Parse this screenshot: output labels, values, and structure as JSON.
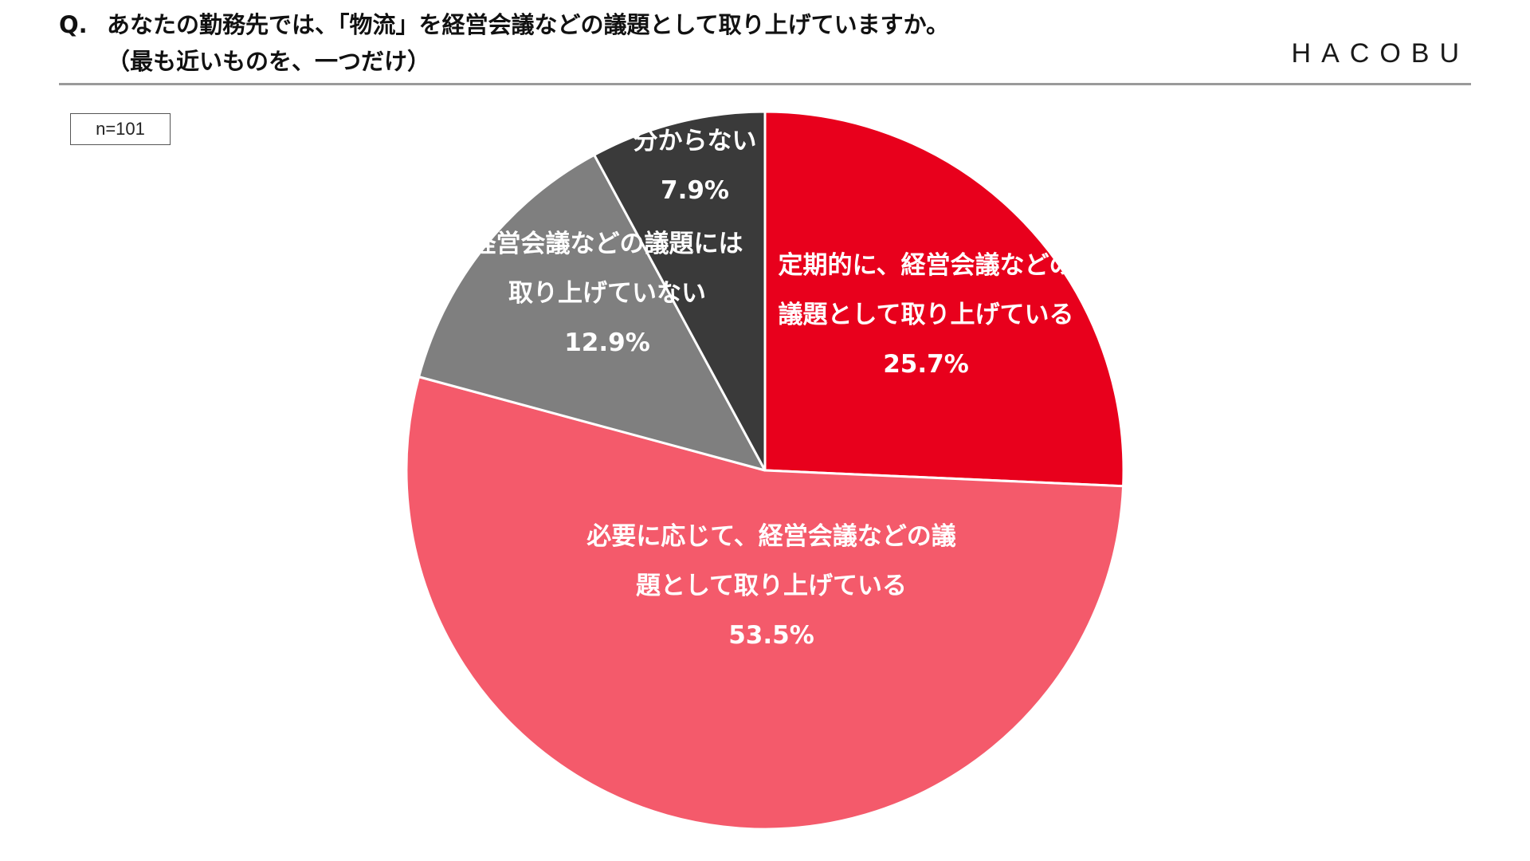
{
  "header": {
    "question_prefix": "Q.",
    "question_line1": "あなたの勤務先では、「物流」を経営会議などの議題として取り上げていますか。",
    "question_line2": "（最も近いものを、一つだけ）",
    "brand": "HACOBU"
  },
  "sample_size": "n=101",
  "chart_data": {
    "type": "pie",
    "title": "",
    "start_angle_deg": 0,
    "direction": "clockwise",
    "slices": [
      {
        "label_lines": [
          "定期的に、経営会議などの",
          "議題として取り上げている"
        ],
        "value": 25.7,
        "value_label": "25.7%",
        "color": "#e8001c"
      },
      {
        "label_lines": [
          "必要に応じて、経営会議などの議",
          "題として取り上げている"
        ],
        "value": 53.5,
        "value_label": "53.5%",
        "color": "#f45a6b"
      },
      {
        "label_lines": [
          "経営会議などの議題には",
          "取り上げていない"
        ],
        "value": 12.9,
        "value_label": "12.9%",
        "color": "#7f7f7f"
      },
      {
        "label_lines": [
          "分からない"
        ],
        "value": 7.9,
        "value_label": "7.9%",
        "color": "#3a3a3a"
      }
    ]
  }
}
